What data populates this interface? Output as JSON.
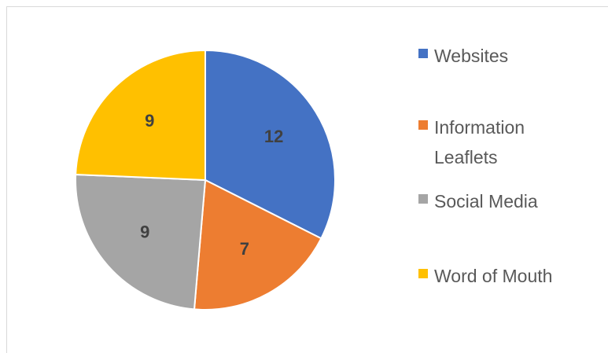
{
  "chart_data": {
    "type": "pie",
    "categories": [
      "Websites",
      "Information Leaflets",
      "Social Media",
      "Word of Mouth"
    ],
    "values": [
      12,
      7,
      9,
      9
    ],
    "colors": [
      "#4472c4",
      "#ed7d31",
      "#a5a5a5",
      "#ffc000"
    ],
    "legend": "right"
  }
}
